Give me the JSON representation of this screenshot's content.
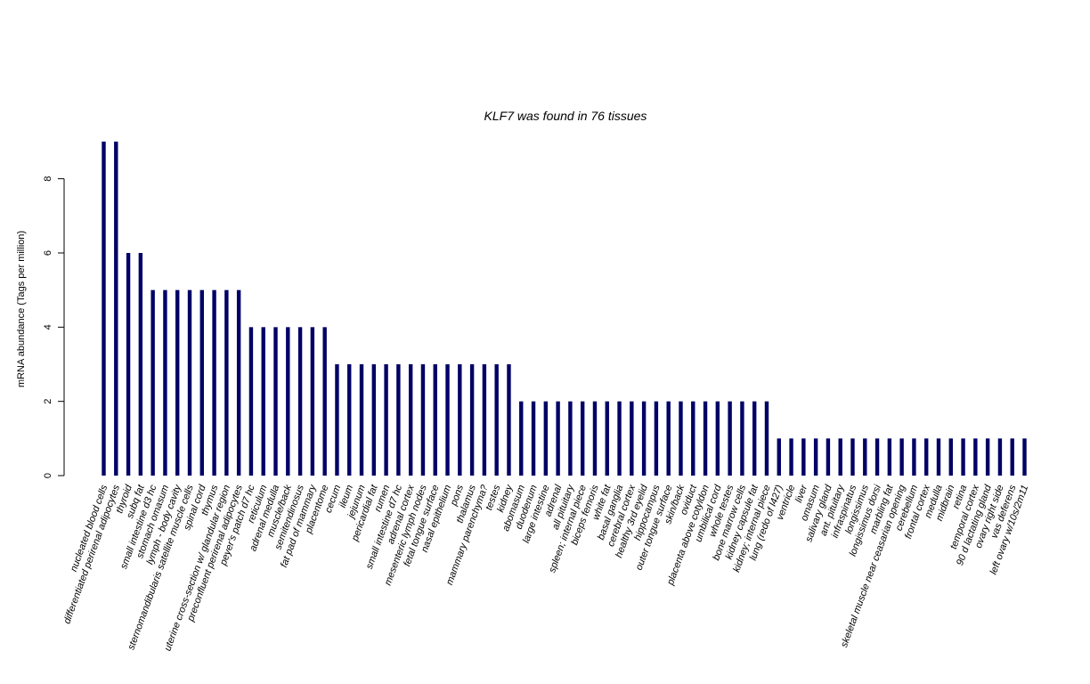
{
  "chart_data": {
    "type": "bar",
    "title": "KLF7  was found in  76  tissues",
    "xlabel": "",
    "ylabel": "mRNA abundance (Tags per million)",
    "ylim": [
      0,
      9
    ],
    "yticks": [
      0,
      2,
      4,
      6,
      8
    ],
    "bar_color": "#000066",
    "grid": false,
    "categories": [
      "nucleated blood cells",
      "differentiated perirenal adipocytes",
      "thyroid",
      "subq fat",
      "small intestine d3 hc",
      "stomach omasum",
      "lymph - body cavity",
      "sternomandibularis satellite muscle cells",
      "spinal cord",
      "thymus",
      "uterine cross-section w/ glandular region",
      "preconfluent perirenal adipocytes",
      "peyer's patch d7 hc",
      "reticulum",
      "adrenal medulla",
      "muscle/back",
      "semitendinosus",
      "fat pad of mammary",
      "placentome",
      "cecum",
      "ileum",
      "jejunum",
      "pericardial fat",
      "rumen",
      "small intestine d7 hc",
      "adrenal cortex",
      "mesenteric lymph nodes",
      "fetal tongue surface",
      "nasal epithelium",
      "pons",
      "thalamus",
      "mammary parenchyma?",
      "testes",
      "kidney",
      "abomasum",
      "duodenum",
      "large intestine",
      "adrenal",
      "all pituitary",
      "spleen; internal piece",
      "biceps femoris",
      "white fat",
      "basal ganglia",
      "cerebral cortex",
      "healthy 3rd eyelid",
      "hippocampus",
      "outer tongue surface",
      "skin/back",
      "oviduct",
      "placenta above cotyldon",
      "umbilical cord",
      "whole testes",
      "bone marrow cells",
      "kidney capsule fat",
      "kidney; internal piece",
      "lung (redo of l427)",
      "ventricle",
      "liver",
      "omasum",
      "salivary gland",
      "ant. pituitary",
      "infraspinatus",
      "longissimus",
      "longissimus dorsi",
      "marbling fat",
      "skeletal muscle near ceasarian opening",
      "cerebellum",
      "frontal cortex",
      "medulla",
      "midbrain",
      "retina",
      "temporal cortex",
      "90 d lactating gland",
      "ovary right side",
      "vas deferens",
      "left ovary w/10s/2m11"
    ],
    "values": [
      9,
      9,
      6,
      6,
      5,
      5,
      5,
      5,
      5,
      5,
      5,
      5,
      4,
      4,
      4,
      4,
      4,
      4,
      4,
      3,
      3,
      3,
      3,
      3,
      3,
      3,
      3,
      3,
      3,
      3,
      3,
      3,
      3,
      3,
      2,
      2,
      2,
      2,
      2,
      2,
      2,
      2,
      2,
      2,
      2,
      2,
      2,
      2,
      2,
      2,
      2,
      2,
      2,
      2,
      2,
      1,
      1,
      1,
      1,
      1,
      1,
      1,
      1,
      1,
      1,
      1,
      1,
      1,
      1,
      1,
      1,
      1,
      1,
      1,
      1,
      1
    ]
  }
}
